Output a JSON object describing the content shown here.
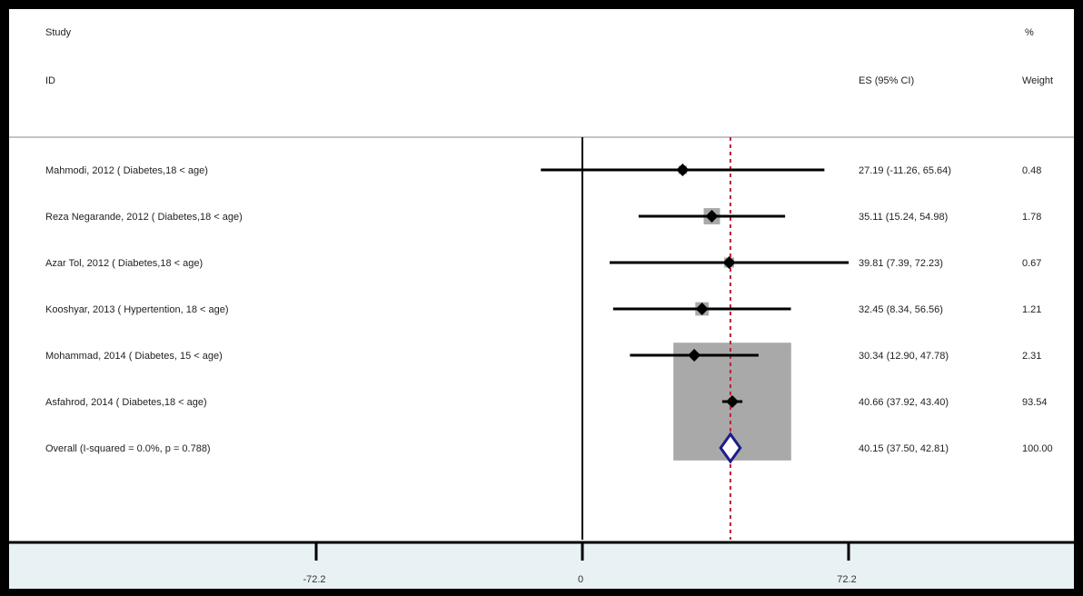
{
  "header": {
    "study": "Study",
    "id": "ID",
    "es": "ES (95% CI)",
    "pct": "%",
    "weight": "Weight"
  },
  "chart_data": {
    "type": "forest",
    "xlim": [
      -72.2,
      72.2
    ],
    "x_ticks": [
      -72.2,
      0,
      72.2
    ],
    "x_tick_labels": [
      "-72.2",
      "0",
      "72.2"
    ],
    "null_line": 0,
    "overall_line": 40.15,
    "studies": [
      {
        "label": "Mahmodi, 2012 ( Diabetes,18 < age)",
        "es": 27.19,
        "lo": -11.26,
        "hi": 65.64,
        "ci_text": "27.19 (-11.26, 65.64)",
        "weight": 0.48,
        "weight_text": "0.48"
      },
      {
        "label": "Reza Negarande, 2012 ( Diabetes,18 < age)",
        "es": 35.11,
        "lo": 15.24,
        "hi": 54.98,
        "ci_text": "35.11 (15.24, 54.98)",
        "weight": 1.78,
        "weight_text": "1.78"
      },
      {
        "label": "Azar Tol, 2012 ( Diabetes,18 < age)",
        "es": 39.81,
        "lo": 7.39,
        "hi": 72.23,
        "ci_text": "39.81 (7.39, 72.23)",
        "weight": 0.67,
        "weight_text": "0.67"
      },
      {
        "label": "Kooshyar, 2013 ( Hypertention, 18 < age)",
        "es": 32.45,
        "lo": 8.34,
        "hi": 56.56,
        "ci_text": "32.45 (8.34, 56.56)",
        "weight": 1.21,
        "weight_text": "1.21"
      },
      {
        "label": "Mohammad, 2014 ( Diabetes, 15 < age)",
        "es": 30.34,
        "lo": 12.9,
        "hi": 47.78,
        "ci_text": "30.34 (12.90, 47.78)",
        "weight": 2.31,
        "weight_text": "2.31"
      },
      {
        "label": "Asfahrod, 2014 ( Diabetes,18 < age)",
        "es": 40.66,
        "lo": 37.92,
        "hi": 43.4,
        "ci_text": "40.66 (37.92, 43.40)",
        "weight": 93.54,
        "weight_text": "93.54"
      }
    ],
    "overall": {
      "label": "Overall  (I-squared = 0.0%, p = 0.788)",
      "es": 40.15,
      "lo": 37.5,
      "hi": 42.81,
      "ci_text": "40.15 (37.50, 42.81)",
      "weight_text": "100.00"
    }
  },
  "colors": {
    "frame": "#000000",
    "weight_box": "#a9a9a9",
    "diamond": "#1c1c8c",
    "overall_line": "#c0213a",
    "axis_band": "#e8f1f4"
  }
}
